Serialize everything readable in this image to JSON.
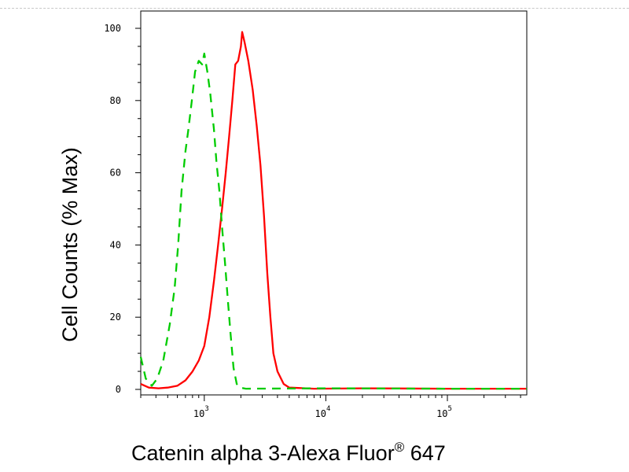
{
  "chart_data": {
    "type": "line",
    "title": "",
    "xlabel": {
      "text": "Catenin alpha 3-Alexa Fluor",
      "superscript": "®",
      "suffix": " 647"
    },
    "ylabel": "Cell Counts (% Max)",
    "xscale": "log",
    "xlim": [
      300,
      450000
    ],
    "ylim": [
      0,
      100
    ],
    "grid": false,
    "legend": "none",
    "yticks": [
      {
        "value": 0,
        "label": "0"
      },
      {
        "value": 20,
        "label": "20"
      },
      {
        "value": 40,
        "label": "40"
      },
      {
        "value": 60,
        "label": "60"
      },
      {
        "value": 80,
        "label": "80"
      },
      {
        "value": 100,
        "label": "100"
      }
    ],
    "xticks": [
      {
        "value": 1000,
        "base": "10",
        "exp": "3"
      },
      {
        "value": 10000,
        "base": "10",
        "exp": "4"
      },
      {
        "value": 100000,
        "base": "10",
        "exp": "5"
      }
    ],
    "series": [
      {
        "color": "#ff0000",
        "style": "solid",
        "points": [
          [
            300,
            1.5
          ],
          [
            350,
            0.5
          ],
          [
            420,
            0.3
          ],
          [
            500,
            0.5
          ],
          [
            600,
            1
          ],
          [
            700,
            2.5
          ],
          [
            800,
            5
          ],
          [
            900,
            8
          ],
          [
            1000,
            12
          ],
          [
            1100,
            20
          ],
          [
            1200,
            30
          ],
          [
            1300,
            40
          ],
          [
            1400,
            50
          ],
          [
            1500,
            60
          ],
          [
            1600,
            70
          ],
          [
            1700,
            80
          ],
          [
            1800,
            90
          ],
          [
            1900,
            91
          ],
          [
            2000,
            95
          ],
          [
            2050,
            99
          ],
          [
            2150,
            96
          ],
          [
            2300,
            91
          ],
          [
            2500,
            83
          ],
          [
            2700,
            73
          ],
          [
            2900,
            62
          ],
          [
            3100,
            48
          ],
          [
            3300,
            32
          ],
          [
            3500,
            20
          ],
          [
            3700,
            10
          ],
          [
            4000,
            5
          ],
          [
            4500,
            1.5
          ],
          [
            5000,
            0.5
          ],
          [
            8000,
            0.2
          ],
          [
            20000,
            0.3
          ],
          [
            100000,
            0.2
          ],
          [
            450000,
            0.2
          ]
        ]
      },
      {
        "color": "#00cc00",
        "style": "dashed",
        "points": [
          [
            300,
            9
          ],
          [
            330,
            3
          ],
          [
            370,
            1
          ],
          [
            410,
            3
          ],
          [
            460,
            8
          ],
          [
            520,
            18
          ],
          [
            570,
            28
          ],
          [
            610,
            40
          ],
          [
            650,
            55
          ],
          [
            700,
            66
          ],
          [
            740,
            72
          ],
          [
            790,
            80
          ],
          [
            840,
            88
          ],
          [
            900,
            91
          ],
          [
            960,
            90
          ],
          [
            1000,
            93
          ],
          [
            1060,
            88
          ],
          [
            1120,
            82
          ],
          [
            1200,
            72
          ],
          [
            1260,
            63
          ],
          [
            1330,
            55
          ],
          [
            1400,
            45
          ],
          [
            1480,
            35
          ],
          [
            1560,
            25
          ],
          [
            1640,
            16
          ],
          [
            1740,
            6
          ],
          [
            1850,
            1.5
          ],
          [
            1950,
            0.5
          ],
          [
            2200,
            0.2
          ],
          [
            10000,
            0.3
          ],
          [
            100000,
            0.2
          ],
          [
            450000,
            0.2
          ]
        ]
      }
    ]
  }
}
